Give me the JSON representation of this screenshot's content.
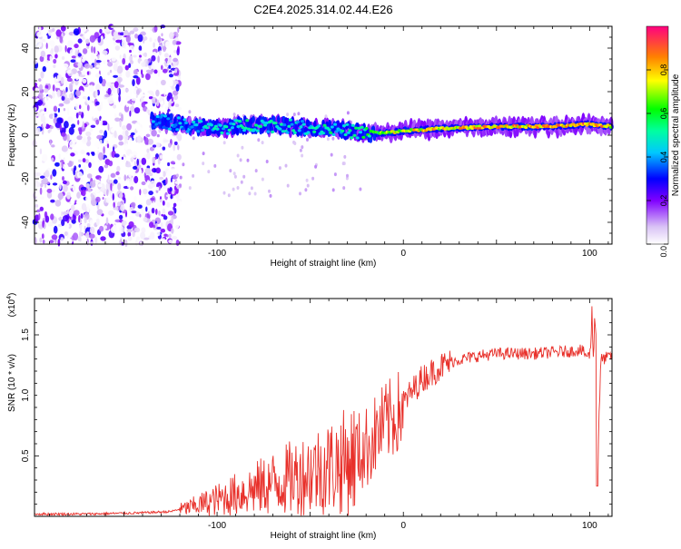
{
  "title": "C2E4.2025.314.02.44.E26",
  "chart_data": [
    {
      "type": "heatmap",
      "name": "spectrogram",
      "xlabel": "Height of straight line (km)",
      "ylabel": "Frequency (Hz)",
      "xlim": [
        -198,
        112
      ],
      "ylim": [
        -50,
        50
      ],
      "x_ticks": [
        -100,
        0,
        100
      ],
      "y_ticks": [
        -40,
        -20,
        0,
        20,
        40
      ],
      "colorbar": {
        "label": "Normalized spectral amplitude",
        "range": [
          0,
          1
        ],
        "ticks": [
          "0.0",
          "0.2",
          "0.4",
          "0.6",
          "0.8"
        ]
      },
      "signal_ridge": {
        "x": [
          -135,
          -120,
          -100,
          -80,
          -60,
          -40,
          -30,
          -20,
          -10,
          0,
          20,
          50,
          80,
          100,
          112
        ],
        "freq": [
          7,
          5,
          3,
          5,
          4,
          3,
          2,
          1,
          1,
          2,
          3,
          4,
          4,
          5,
          4
        ],
        "amplitude": [
          0.4,
          0.45,
          0.5,
          0.55,
          0.5,
          0.55,
          0.5,
          0.6,
          0.75,
          0.8,
          0.85,
          0.9,
          0.9,
          0.95,
          0.85
        ]
      },
      "noise_region": {
        "x_from": -198,
        "x_to": -120,
        "freq_range": [
          -50,
          50
        ],
        "amplitude_max": 0.3
      }
    },
    {
      "type": "line",
      "name": "snr",
      "xlabel": "Height of straight line (km)",
      "ylabel": "SNR (10 * v/v)",
      "y_multiplier_label": "(x10",
      "y_multiplier_exp": "4",
      "y_multiplier_close": ")",
      "xlim": [
        -198,
        112
      ],
      "ylim": [
        0,
        1.8
      ],
      "x_ticks": [
        -100,
        0,
        100
      ],
      "y_ticks": [
        0.5,
        1.0,
        1.5
      ],
      "y_tick_labels": [
        "0.5",
        "1.0",
        "1.5"
      ],
      "color": "#e8302a",
      "series": [
        {
          "name": "SNR",
          "x": [
            -198,
            -170,
            -140,
            -125,
            -115,
            -100,
            -90,
            -80,
            -70,
            -60,
            -50,
            -40,
            -30,
            -20,
            -15,
            -10,
            -5,
            0,
            5,
            10,
            15,
            20,
            25,
            30,
            40,
            50,
            60,
            70,
            80,
            90,
            95,
            100,
            102,
            104,
            106,
            110,
            112
          ],
          "y": [
            0.02,
            0.02,
            0.03,
            0.04,
            0.08,
            0.15,
            0.2,
            0.25,
            0.3,
            0.35,
            0.4,
            0.45,
            0.5,
            0.6,
            0.7,
            0.8,
            0.85,
            0.95,
            1.05,
            1.15,
            1.2,
            1.25,
            1.28,
            1.3,
            1.33,
            1.35,
            1.35,
            1.35,
            1.36,
            1.37,
            1.38,
            1.32,
            1.75,
            0.25,
            1.3,
            1.32,
            1.33
          ]
        }
      ]
    }
  ]
}
